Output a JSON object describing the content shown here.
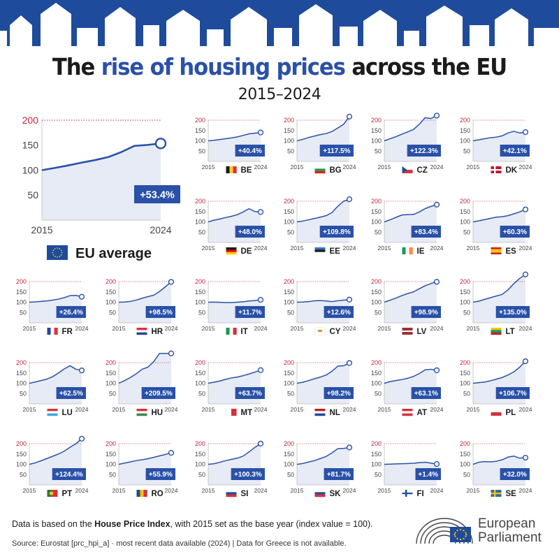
{
  "title": {
    "part1": "The",
    "highlight": "rise of housing prices",
    "part2": "across the EU"
  },
  "subtitle": "2015–2024",
  "chart_data": {
    "type": "line",
    "x": [
      2015,
      2016,
      2017,
      2018,
      2019,
      2020,
      2021,
      2022,
      2023,
      2024
    ],
    "xlabel_start": "2015",
    "xlabel_end": "2024",
    "ylim": [
      0,
      200
    ],
    "yticks": [
      50,
      100,
      150,
      200
    ],
    "base_year_value": 100,
    "main": {
      "code": "EU",
      "name": "EU average",
      "label": "+53.4%",
      "values": [
        100,
        104.5,
        109.5,
        115,
        120,
        126,
        136,
        148.5,
        150.5,
        153.4
      ]
    },
    "countries": [
      {
        "code": "BE",
        "label": "+40.4%",
        "flag": "be",
        "values": [
          100,
          102.6,
          106.4,
          110,
          114,
          119,
          126,
          134,
          137,
          140.4
        ]
      },
      {
        "code": "BG",
        "label": "+117.5%",
        "flag": "bg",
        "values": [
          100,
          107,
          116,
          123,
          130,
          135,
          145,
          162,
          180,
          217.5
        ]
      },
      {
        "code": "CZ",
        "label": "+122.3%",
        "flag": "cz",
        "values": [
          100,
          110,
          120,
          132,
          143,
          155,
          180,
          212,
          208,
          222.3
        ]
      },
      {
        "code": "DK",
        "label": "+42.1%",
        "flag": "dk",
        "values": [
          100,
          105,
          110,
          115,
          118,
          124,
          138,
          146,
          138,
          142.1
        ]
      },
      {
        "code": "DE",
        "label": "+48.0%",
        "flag": "de",
        "values": [
          100,
          108,
          114,
          121,
          127,
          135,
          148,
          164,
          150,
          148.0
        ]
      },
      {
        "code": "EE",
        "label": "+109.8%",
        "flag": "ee",
        "values": [
          100,
          104,
          110,
          116,
          123,
          130,
          145,
          175,
          200,
          209.8
        ]
      },
      {
        "code": "IE",
        "label": "+83.4%",
        "flag": "ie",
        "values": [
          100,
          110,
          122,
          133,
          135,
          136,
          148,
          164,
          175,
          183.4
        ]
      },
      {
        "code": "ES",
        "label": "+60.3%",
        "flag": "es",
        "values": [
          100,
          105,
          111,
          117,
          123,
          125,
          130,
          139,
          148,
          160.3
        ]
      },
      {
        "code": "FR",
        "label": "+26.4%",
        "flag": "fr",
        "values": [
          100,
          101.5,
          104,
          106.5,
          110,
          115,
          122,
          132,
          133,
          126.4
        ]
      },
      {
        "code": "HR",
        "label": "+98.5%",
        "flag": "hr",
        "values": [
          100,
          101,
          104,
          110,
          119,
          127,
          134,
          152,
          175,
          198.5
        ]
      },
      {
        "code": "IT",
        "label": "+11.7%",
        "flag": "it",
        "values": [
          100,
          100.5,
          99.5,
          98.5,
          98.5,
          100,
          102,
          106,
          108,
          111.7
        ]
      },
      {
        "code": "CY",
        "label": "+12.6%",
        "flag": "cy",
        "values": [
          100,
          101,
          103,
          107,
          108,
          106,
          103,
          107,
          110,
          112.6
        ]
      },
      {
        "code": "LV",
        "label": "+98.9%",
        "flag": "lv",
        "values": [
          100,
          110,
          120,
          132,
          142,
          150,
          165,
          180,
          190,
          198.9
        ]
      },
      {
        "code": "LT",
        "label": "+135.0%",
        "flag": "lt",
        "values": [
          100,
          105,
          114,
          122,
          130,
          138,
          160,
          190,
          215,
          235.0
        ]
      },
      {
        "code": "LU",
        "label": "+62.5%",
        "flag": "lu",
        "values": [
          100,
          106,
          113,
          120,
          132,
          150,
          170,
          185,
          168,
          162.5
        ]
      },
      {
        "code": "HU",
        "label": "+209.5%",
        "flag": "hu",
        "values": [
          100,
          113,
          128,
          146,
          168,
          178,
          205,
          255,
          285,
          309.5
        ]
      },
      {
        "code": "MT",
        "label": "+63.7%",
        "flag": "mt",
        "values": [
          100,
          105,
          111,
          119,
          126,
          130,
          137,
          145,
          154,
          163.7
        ]
      },
      {
        "code": "NL",
        "label": "+98.2%",
        "flag": "nl",
        "values": [
          100,
          105,
          113,
          122,
          130,
          140,
          158,
          183,
          185,
          198.2
        ]
      },
      {
        "code": "AT",
        "label": "+63.1%",
        "flag": "at",
        "values": [
          100,
          108,
          113,
          118,
          124,
          133,
          147,
          165,
          168,
          163.1
        ]
      },
      {
        "code": "PL",
        "label": "+106.7%",
        "flag": "pl",
        "values": [
          100,
          103,
          106,
          112,
          120,
          128,
          140,
          155,
          178,
          206.7
        ]
      },
      {
        "code": "PT",
        "label": "+124.4%",
        "flag": "pt",
        "values": [
          100,
          107,
          117,
          128,
          139,
          150,
          164,
          183,
          200,
          224.4
        ]
      },
      {
        "code": "RO",
        "label": "+55.9%",
        "flag": "ro",
        "values": [
          100,
          106,
          112,
          118,
          122,
          127,
          134,
          141,
          148,
          155.9
        ]
      },
      {
        "code": "SI",
        "label": "+100.3%",
        "flag": "si",
        "values": [
          100,
          103,
          110,
          118,
          124,
          130,
          140,
          160,
          182,
          200.3
        ]
      },
      {
        "code": "SK",
        "label": "+81.7%",
        "flag": "sk",
        "values": [
          100,
          104,
          111,
          118,
          128,
          138,
          155,
          176,
          177,
          181.7
        ]
      },
      {
        "code": "FI",
        "label": "+1.4%",
        "flag": "fi",
        "values": [
          100,
          101,
          102,
          103,
          104,
          105,
          108,
          110,
          106,
          101.4
        ]
      },
      {
        "code": "SE",
        "label": "+32.0%",
        "flag": "se",
        "values": [
          100,
          110,
          113,
          112,
          115,
          122,
          135,
          140,
          130,
          132.0
        ]
      }
    ]
  },
  "footer": {
    "note_pre": "Data is based on the ",
    "note_bold": "House Price Index",
    "note_post": ", with 2015 set as the base year (index value = 100).",
    "source": "Source: Eurostat [prc_hpi_a]  ·  most recent data available (2024)  |  Data for Greece is not available."
  },
  "logo": {
    "line1": "European",
    "line2": "Parliament"
  },
  "colors": {
    "banner": "#1f4b9c",
    "line": "#2a51a8",
    "area": "#e6ebf5",
    "label_box": "#2a51a8",
    "grid200": "#c8243a",
    "axis_text": "#444444"
  }
}
